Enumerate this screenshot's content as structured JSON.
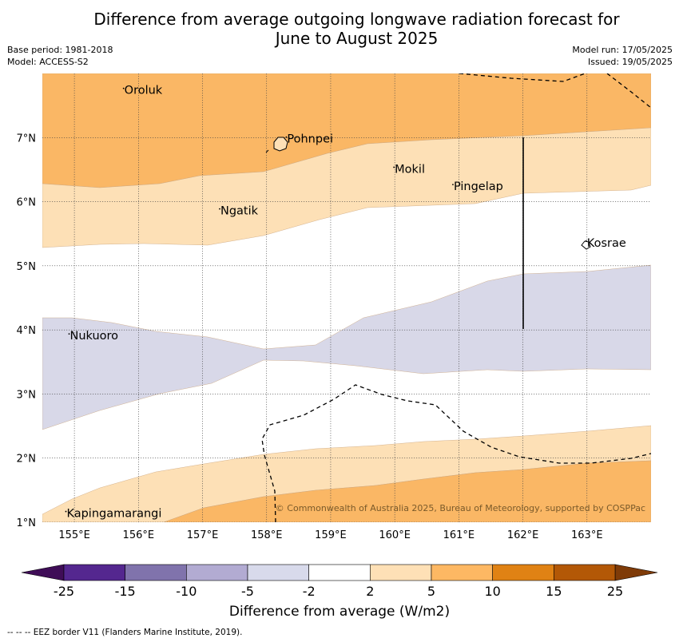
{
  "header": {
    "title_line1": "Difference from average outgoing longwave radiation forecast for",
    "title_line2": "June to August 2025",
    "base_period": "Base period: 1981-2018",
    "model": "Model: ACCESS-S2",
    "model_run": "Model run: 17/05/2025",
    "issued": "Issued: 19/05/2025"
  },
  "map": {
    "copyright": "© Commonwealth of Australia 2025, Bureau of Meteorology, supported by COSPPac",
    "lat_ticks": [
      "1°N",
      "2°N",
      "3°N",
      "4°N",
      "5°N",
      "6°N",
      "7°N"
    ],
    "lon_ticks": [
      "155°E",
      "156°E",
      "157°E",
      "158°E",
      "159°E",
      "160°E",
      "161°E",
      "162°E",
      "163°E"
    ],
    "places": [
      {
        "name": "Oroluk",
        "lon": 155.78,
        "lat": 7.68
      },
      {
        "name": "Pohnpei",
        "lon": 158.32,
        "lat": 6.92
      },
      {
        "name": "Mokil",
        "lon": 160.0,
        "lat": 6.45
      },
      {
        "name": "Pingelap",
        "lon": 160.92,
        "lat": 6.18
      },
      {
        "name": "Ngatik",
        "lon": 157.28,
        "lat": 5.8
      },
      {
        "name": "Kosrae",
        "lon": 163.0,
        "lat": 5.3
      },
      {
        "name": "Nukuoro",
        "lon": 154.93,
        "lat": 3.85
      },
      {
        "name": "Kapingamarangi",
        "lon": 154.88,
        "lat": 1.08
      }
    ],
    "colors": {
      "c_5_10": "#fab765",
      "c_2_5": "#fde0b6",
      "c_neg5_neg2": "#d8d8e8",
      "coast": "#000000"
    }
  },
  "colorbar": {
    "labels": [
      "-25",
      "-15",
      "-10",
      "-5",
      "-2",
      "2",
      "5",
      "10",
      "15",
      "25"
    ],
    "colors": [
      "#3f0d57",
      "#54278f",
      "#8073ac",
      "#b2abd2",
      "#d8daeb",
      "#ffffff",
      "#fee0b6",
      "#fdb863",
      "#e08214",
      "#b35806",
      "#7f3b08"
    ],
    "title": "Difference from average (W/m2)"
  },
  "footnote": "--  --  -- EEZ border V11 (Flanders Marine Institute, 2019)."
}
